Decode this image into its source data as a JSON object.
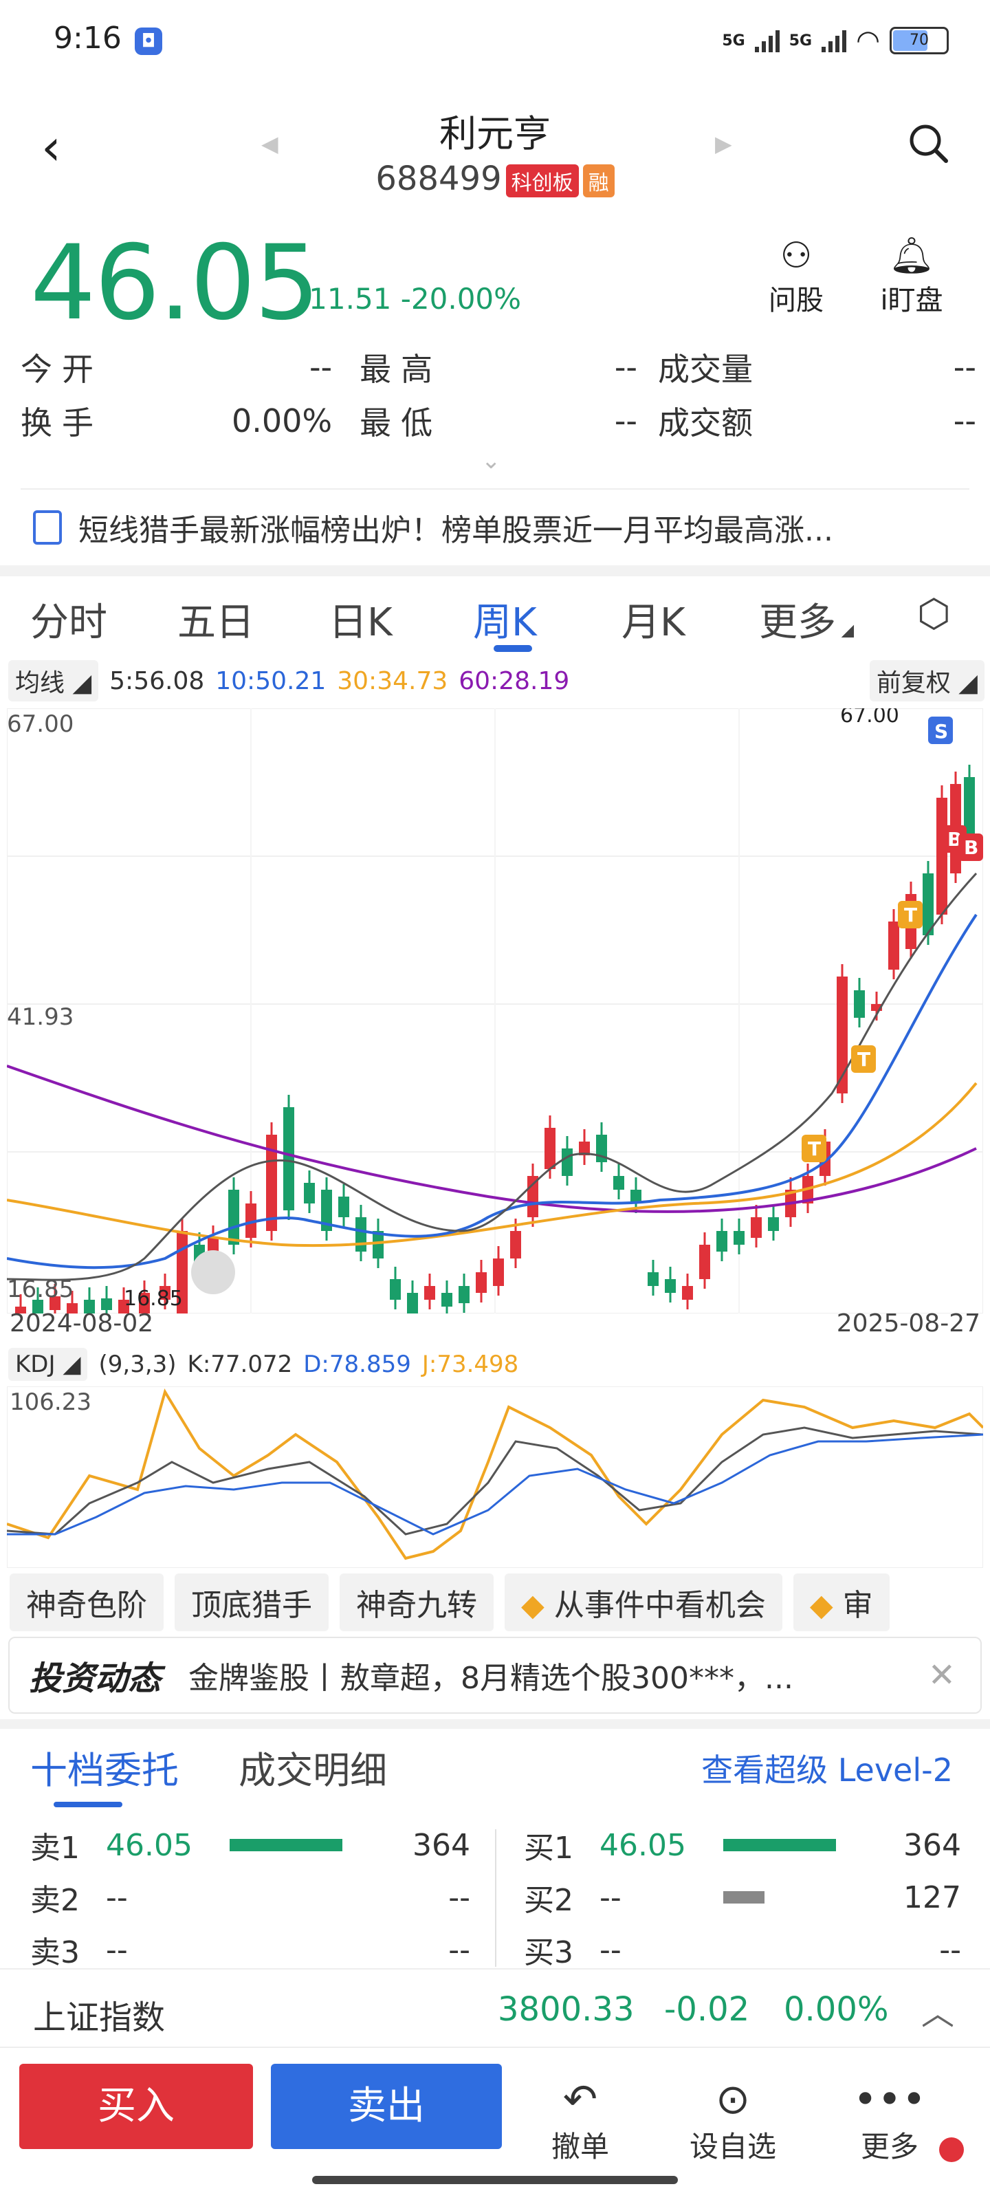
{
  "status_bar": {
    "time": "9:16",
    "signal1": "5G",
    "signal2": "5G",
    "battery": "70"
  },
  "header": {
    "name": "利元亨",
    "code": "688499",
    "tag1": "科创板",
    "tag2": "融"
  },
  "quote": {
    "price": "46.05",
    "change": "-11.51",
    "change_pct": "-20.00%",
    "ask_label": "问股",
    "alert_label": "i盯盘"
  },
  "stats": {
    "open_label": "今开",
    "open": "--",
    "high_label": "最高",
    "high": "--",
    "volume_label": "成交量",
    "volume": "--",
    "turnover_label": "换手",
    "turnover": "0.00%",
    "low_label": "最低",
    "low": "--",
    "amount_label": "成交额",
    "amount": "--"
  },
  "news": {
    "text": "短线猎手最新涨幅榜出炉！榜单股票近一月平均最高涨..."
  },
  "tabs": [
    "分时",
    "五日",
    "日K",
    "周K",
    "月K",
    "更多"
  ],
  "active_tab": "周K",
  "ma_legend": {
    "label": "均线",
    "ma5": "5:56.08",
    "ma10": "10:50.21",
    "ma30": "30:34.73",
    "ma60": "60:28.19",
    "adjust": "前复权"
  },
  "chart_labels": {
    "top_price": "67.00",
    "mid_price": "41.93",
    "low_price": "16.85",
    "max_mark": "67.00",
    "min_mark": "16.85",
    "start_date": "2024-08-02",
    "end_date": "2025-08-27"
  },
  "kdj": {
    "label": "KDJ",
    "params": "(9,3,3)",
    "k": "K:77.072",
    "d": "D:78.859",
    "j": "J:73.498",
    "top": "106.23"
  },
  "feature_tabs": [
    "神奇色阶",
    "顶底猎手",
    "神奇九转",
    "从事件中看机会",
    "审"
  ],
  "invest": {
    "brand": "投资动态",
    "text": "金牌鉴股丨敖章超，8月精选个股300***，..."
  },
  "orderbook": {
    "tab1": "十档委托",
    "tab2": "成交明细",
    "level2": "查看超级 Level-2",
    "sell": [
      {
        "label": "卖1",
        "price": "46.05",
        "vol": "364"
      },
      {
        "label": "卖2",
        "price": "--",
        "vol": "--"
      },
      {
        "label": "卖3",
        "price": "--",
        "vol": "--"
      }
    ],
    "buy": [
      {
        "label": "买1",
        "price": "46.05",
        "vol": "364"
      },
      {
        "label": "买2",
        "price": "--",
        "vol": "127"
      },
      {
        "label": "买3",
        "price": "--",
        "vol": "--"
      }
    ]
  },
  "index_bar": {
    "name": "上证指数",
    "value": "3800.33",
    "change": "-0.02",
    "pct": "0.00%"
  },
  "footer": {
    "buy": "买入",
    "sell": "卖出",
    "cancel": "撤单",
    "watch": "设自选",
    "more": "更多"
  },
  "colors": {
    "green": "#1a9e69",
    "red": "#e0323a",
    "blue": "#2b66d9",
    "orange": "#f0a623",
    "purple": "#8a1ab0"
  }
}
